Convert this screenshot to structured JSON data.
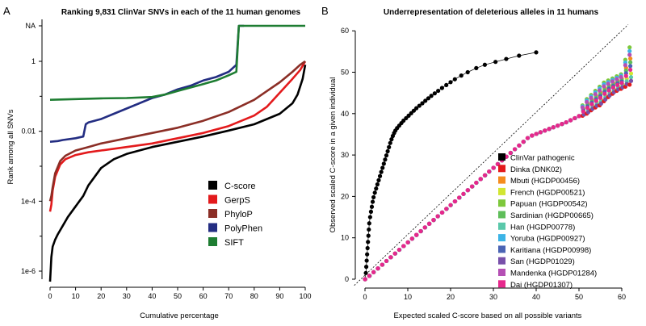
{
  "chart_data": [
    {
      "panel_label": "A",
      "type": "line",
      "title": "Ranking 9,831 ClinVar SNVs in each of the 11 human genomes",
      "xlabel": "Cumulative percentage",
      "ylabel": "Rank among all SNVs",
      "xlim": [
        0,
        100
      ],
      "x_ticks": [
        0,
        10,
        20,
        30,
        40,
        50,
        60,
        70,
        80,
        90,
        100
      ],
      "y_scale": "log10",
      "y_ticks": [
        {
          "label": "1e-6",
          "exp": -6
        },
        {
          "label": "1e-4",
          "exp": -4
        },
        {
          "label": "0.01",
          "exp": -2
        },
        {
          "label": "1",
          "exp": 0
        },
        {
          "label": "NA",
          "exp": 1.6
        }
      ],
      "series": [
        {
          "name": "C-score",
          "color": "#000000",
          "x": [
            0,
            0.5,
            1,
            2,
            3,
            5,
            7,
            10,
            13,
            15,
            18,
            20,
            25,
            30,
            35,
            40,
            50,
            60,
            70,
            80,
            85,
            90,
            95,
            97,
            99,
            100
          ],
          "log_y": [
            -6.3,
            -5.6,
            -5.3,
            -5.1,
            -4.95,
            -4.7,
            -4.45,
            -4.15,
            -3.85,
            -3.55,
            -3.25,
            -3.05,
            -2.8,
            -2.65,
            -2.55,
            -2.45,
            -2.3,
            -2.15,
            -1.98,
            -1.8,
            -1.65,
            -1.5,
            -1.2,
            -0.95,
            -0.5,
            -0.1
          ]
        },
        {
          "name": "GerpS",
          "color": "#e31a1c",
          "x": [
            0,
            0.5,
            1,
            2,
            4,
            6,
            10,
            15,
            20,
            30,
            40,
            50,
            60,
            70,
            80,
            85,
            90,
            95,
            98,
            100
          ],
          "log_y": [
            -4.3,
            -4.1,
            -3.7,
            -3.3,
            -2.95,
            -2.8,
            -2.68,
            -2.6,
            -2.55,
            -2.45,
            -2.35,
            -2.2,
            -2.05,
            -1.85,
            -1.55,
            -1.3,
            -0.9,
            -0.5,
            -0.25,
            0
          ]
        },
        {
          "name": "PhyloP",
          "color": "#8b2e26",
          "x": [
            0,
            0.5,
            1,
            2,
            4,
            6,
            10,
            15,
            20,
            30,
            40,
            50,
            60,
            70,
            80,
            85,
            90,
            95,
            98,
            100
          ],
          "log_y": [
            -4.0,
            -3.85,
            -3.6,
            -3.2,
            -2.85,
            -2.7,
            -2.55,
            -2.45,
            -2.35,
            -2.2,
            -2.05,
            -1.9,
            -1.7,
            -1.45,
            -1.1,
            -0.85,
            -0.6,
            -0.3,
            -0.1,
            0
          ]
        },
        {
          "name": "PolyPhen",
          "color": "#232d82",
          "x": [
            0,
            3,
            5,
            10,
            13,
            14,
            15,
            20,
            25,
            30,
            35,
            40,
            45,
            50,
            55,
            60,
            65,
            70,
            73,
            74,
            75,
            76
          ],
          "log_y": [
            -2.3,
            -2.28,
            -2.25,
            -2.2,
            -2.15,
            -1.8,
            -1.75,
            -1.65,
            -1.5,
            -1.35,
            -1.2,
            -1.05,
            -0.95,
            -0.8,
            -0.7,
            -0.55,
            -0.45,
            -0.3,
            -0.1,
            1.6,
            1.6,
            1.6
          ]
        },
        {
          "name": "SIFT",
          "color": "#1e7d32",
          "x": [
            0,
            10,
            20,
            30,
            40,
            45,
            50,
            55,
            60,
            65,
            70,
            73,
            74,
            75,
            80,
            90,
            100
          ],
          "log_y": [
            -1.1,
            -1.08,
            -1.06,
            -1.05,
            -1.02,
            -0.95,
            -0.85,
            -0.75,
            -0.65,
            -0.55,
            -0.4,
            -0.3,
            1.6,
            1.6,
            1.6,
            1.6,
            1.6
          ]
        }
      ],
      "legend_position": "bottom-right"
    },
    {
      "panel_label": "B",
      "type": "scatter",
      "title": "Underrepresentation of deleterious alleles in 11 humans",
      "xlabel": "Expected scaled C-score based on all possible variants",
      "ylabel": "Observed scaled C-score in a given individual",
      "xlim": [
        0,
        63
      ],
      "ylim": [
        -1,
        61
      ],
      "x_ticks": [
        0,
        10,
        20,
        30,
        40,
        50,
        60
      ],
      "y_ticks": [
        0,
        10,
        20,
        30,
        40,
        50,
        60
      ],
      "reference_line": "y = x (dotted)",
      "clinvar_series": {
        "name": "ClinVar pathogenic",
        "color": "#000000",
        "x": [
          0,
          0.2,
          0.3,
          0.4,
          0.5,
          0.6,
          0.7,
          0.8,
          0.9,
          1.0,
          1.2,
          1.4,
          1.6,
          1.8,
          2.0,
          2.3,
          2.6,
          2.9,
          3.2,
          3.5,
          3.8,
          4.1,
          4.4,
          4.7,
          5.0,
          5.3,
          5.6,
          5.9,
          6.2,
          6.5,
          6.8,
          7.1,
          7.5,
          8.0,
          8.5,
          9.0,
          9.6,
          10.2,
          10.8,
          11.4,
          12.0,
          12.7,
          13.4,
          14.1,
          14.8,
          15.5,
          16.3,
          17.1,
          18.0,
          19.0,
          20.0,
          21.0,
          22.5,
          24.0,
          26.0,
          28.0,
          30.5,
          33.0,
          36.0,
          40.0
        ],
        "y": [
          0,
          1.5,
          3,
          4.5,
          6,
          7.5,
          9,
          10.5,
          12,
          13.5,
          15,
          16.3,
          17.5,
          18.7,
          19.8,
          20.9,
          21.9,
          22.9,
          23.9,
          24.9,
          25.9,
          26.9,
          27.9,
          28.9,
          29.9,
          30.9,
          31.9,
          32.9,
          33.8,
          34.6,
          35.3,
          35.9,
          36.5,
          37.1,
          37.7,
          38.3,
          38.9,
          39.5,
          40.1,
          40.7,
          41.3,
          41.9,
          42.5,
          43.1,
          43.7,
          44.3,
          44.9,
          45.5,
          46.2,
          46.9,
          47.6,
          48.3,
          49.2,
          50.0,
          51.0,
          51.8,
          52.5,
          53.2,
          54.0,
          54.8
        ]
      },
      "series": [
        {
          "name": "Dinka (DNK02)",
          "color": "#e31a1c"
        },
        {
          "name": "Mbuti (HGDP00456)",
          "color": "#f58c1e"
        },
        {
          "name": "French (HGDP00521)",
          "color": "#d2e632"
        },
        {
          "name": "Papuan (HGDP00542)",
          "color": "#7ec83c"
        },
        {
          "name": "Sardinian (HGDP00665)",
          "color": "#5fbe5a"
        },
        {
          "name": "Han (HGDP00778)",
          "color": "#5ac8aa"
        },
        {
          "name": "Yoruba (HGDP00927)",
          "color": "#3cb4e6"
        },
        {
          "name": "Karitiana (HGDP00998)",
          "color": "#4b64b4"
        },
        {
          "name": "San (HGDP01029)",
          "color": "#7850aa"
        },
        {
          "name": "Mandenka (HGDP01284)",
          "color": "#b450b4"
        },
        {
          "name": "Dai (HGDP01307)",
          "color": "#e6288c"
        }
      ],
      "shared_diagonal": {
        "x": [
          0,
          1,
          2,
          3,
          4,
          5,
          6,
          7,
          8,
          9,
          10,
          11,
          12,
          13,
          14,
          15,
          16,
          17,
          18,
          19,
          20,
          21,
          22,
          23,
          24,
          25,
          26,
          27,
          28,
          29,
          30,
          31,
          32,
          33,
          34,
          35,
          36,
          37,
          38,
          39,
          40,
          41,
          42,
          43,
          44,
          45,
          46,
          47,
          48,
          49,
          50
        ],
        "y": [
          0,
          0.8,
          1.7,
          2.6,
          3.5,
          4.4,
          5.3,
          6.2,
          7.1,
          8.0,
          8.9,
          9.8,
          10.7,
          11.6,
          12.5,
          13.4,
          14.3,
          15.2,
          16.1,
          17.0,
          17.9,
          18.8,
          19.7,
          20.6,
          21.5,
          22.4,
          23.3,
          24.2,
          25.1,
          26.0,
          26.9,
          27.8,
          28.7,
          29.6,
          30.5,
          31.4,
          32.3,
          33.2,
          34.1,
          34.7,
          35.1,
          35.5,
          35.9,
          36.3,
          36.7,
          37.1,
          37.5,
          37.9,
          38.4,
          38.9,
          39.4
        ]
      },
      "upper_spread": {
        "x": [
          51,
          52,
          53,
          54,
          55,
          56,
          57,
          58,
          59,
          60,
          61,
          62
        ],
        "y_min": [
          39.5,
          40.0,
          40.8,
          41.5,
          42.0,
          43.0,
          44.0,
          44.8,
          45.5,
          46.0,
          46.5,
          47.0
        ],
        "y_max": [
          42.0,
          43.5,
          44.5,
          45.5,
          46.5,
          47.5,
          48.0,
          48.5,
          49.0,
          49.5,
          53.0,
          56.0
        ]
      }
    }
  ]
}
